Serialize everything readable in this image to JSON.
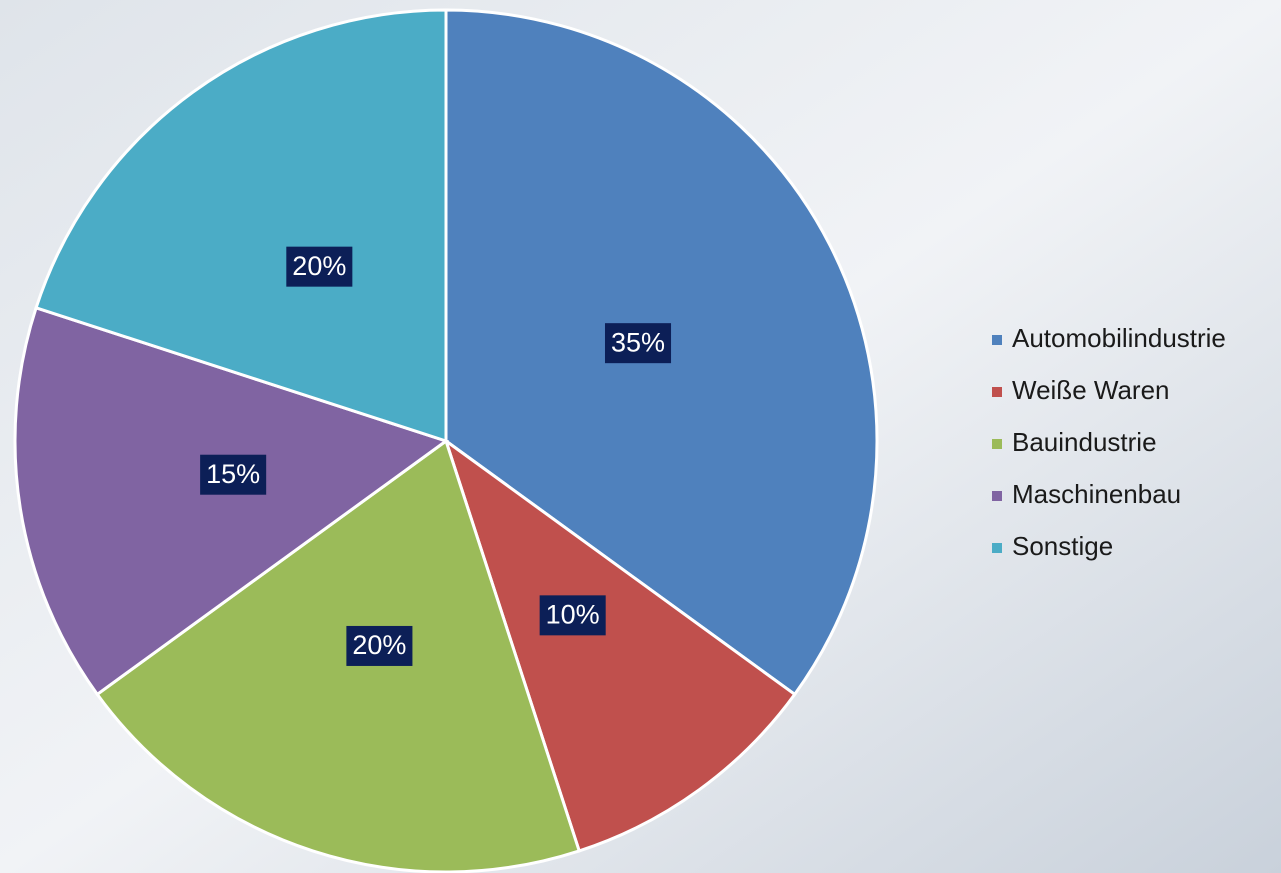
{
  "chart_data": {
    "type": "pie",
    "categories": [
      "Automobilindustrie",
      "Weiße Waren",
      "Bauindustrie",
      "Maschinenbau",
      "Sonstige"
    ],
    "values": [
      35,
      10,
      20,
      15,
      20
    ],
    "value_labels": [
      "35%",
      "10%",
      "20%",
      "15%",
      "20%"
    ],
    "colors": [
      "#4f81bd",
      "#c0504d",
      "#9bbb59",
      "#8064a2",
      "#4bacc6"
    ],
    "legend": "right"
  }
}
